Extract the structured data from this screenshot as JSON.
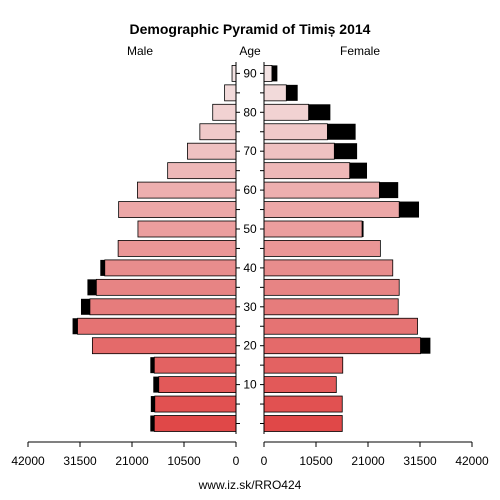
{
  "chart_data": {
    "type": "bar",
    "title": "Demographic Pyramid of Timiș 2014",
    "left_label": "Male",
    "center_label": "Age",
    "right_label": "Female",
    "footer": "www.iz.sk/RRO424",
    "age_tick_labels": [
      "10",
      "20",
      "30",
      "40",
      "50",
      "60",
      "70",
      "80",
      "90"
    ],
    "x_tick_labels_left": [
      "42000",
      "31500",
      "21000",
      "10500",
      "0"
    ],
    "x_tick_labels_right": [
      "0",
      "10500",
      "21000",
      "31500",
      "42000"
    ],
    "xlim": [
      0,
      42000
    ],
    "age_groups": [
      "0-4",
      "5-9",
      "10-14",
      "15-19",
      "20-24",
      "25-29",
      "30-34",
      "35-39",
      "40-44",
      "45-49",
      "50-54",
      "55-59",
      "60-64",
      "65-69",
      "70-74",
      "75-79",
      "80-84",
      "85-89",
      "90-94"
    ],
    "series": [
      {
        "name": "Male",
        "values": [
          16500,
          16400,
          15600,
          16500,
          29000,
          32000,
          29500,
          28200,
          26500,
          23800,
          19800,
          23700,
          19900,
          13800,
          9800,
          7300,
          4700,
          2300,
          800
        ],
        "excess": [
          800,
          800,
          1100,
          800,
          0,
          1000,
          1800,
          1800,
          900,
          0,
          0,
          0,
          0,
          0,
          0,
          0,
          0,
          0,
          0
        ]
      },
      {
        "name": "Female",
        "values": [
          15800,
          15800,
          14600,
          15900,
          31600,
          31000,
          27100,
          27300,
          26000,
          23500,
          19800,
          27300,
          23300,
          17300,
          14200,
          12800,
          9000,
          4500,
          1600
        ],
        "excess": [
          0,
          0,
          0,
          0,
          2000,
          0,
          0,
          0,
          0,
          0,
          300,
          4000,
          3800,
          3500,
          4600,
          5700,
          4400,
          2300,
          1100
        ]
      }
    ],
    "colors": {
      "young": "#e04848",
      "old": "#f3e3e3",
      "excess": "#000000",
      "bar_outline": "#000000"
    }
  }
}
